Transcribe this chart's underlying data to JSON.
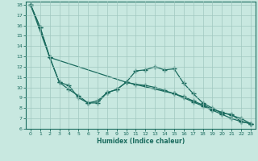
{
  "xlabel": "Humidex (Indice chaleur)",
  "xlim": [
    -0.5,
    23.5
  ],
  "ylim": [
    6,
    18.3
  ],
  "xticks": [
    0,
    1,
    2,
    3,
    4,
    5,
    6,
    7,
    8,
    9,
    10,
    11,
    12,
    13,
    14,
    15,
    16,
    17,
    18,
    19,
    20,
    21,
    22,
    23
  ],
  "yticks": [
    6,
    7,
    8,
    9,
    10,
    11,
    12,
    13,
    14,
    15,
    16,
    17,
    18
  ],
  "bg_color": "#c8e8e0",
  "grid_color": "#a0c8c0",
  "line_color": "#1a6b5e",
  "line1_x": [
    0,
    1,
    2,
    3,
    4,
    5,
    6,
    7,
    8,
    9,
    10,
    11,
    12,
    13,
    14,
    15,
    16,
    17,
    18,
    19,
    20,
    21,
    22,
    23
  ],
  "line1_y": [
    18.0,
    15.8,
    12.9,
    10.5,
    9.8,
    9.2,
    8.5,
    8.5,
    9.5,
    9.8,
    10.5,
    11.6,
    11.7,
    12.0,
    11.7,
    11.8,
    10.4,
    9.4,
    8.5,
    8.0,
    7.5,
    7.4,
    6.7,
    6.5
  ],
  "line2_x": [
    0,
    1,
    2,
    10,
    11,
    12,
    13,
    14,
    15,
    16,
    17,
    18,
    19,
    20,
    21,
    22,
    23
  ],
  "line2_y": [
    18.0,
    15.8,
    12.9,
    10.5,
    10.3,
    10.2,
    10.0,
    9.7,
    9.4,
    9.1,
    8.7,
    8.3,
    7.9,
    7.6,
    7.3,
    7.0,
    6.5
  ],
  "line3_x": [
    0,
    2,
    3,
    4,
    5,
    6,
    7,
    8,
    9,
    10,
    15,
    16,
    17,
    18,
    19,
    20,
    21,
    22,
    23
  ],
  "line3_y": [
    18.0,
    12.9,
    10.5,
    10.2,
    9.0,
    8.5,
    8.7,
    9.5,
    9.8,
    10.5,
    9.4,
    9.0,
    8.6,
    8.2,
    7.8,
    7.4,
    7.0,
    6.7,
    6.5
  ]
}
